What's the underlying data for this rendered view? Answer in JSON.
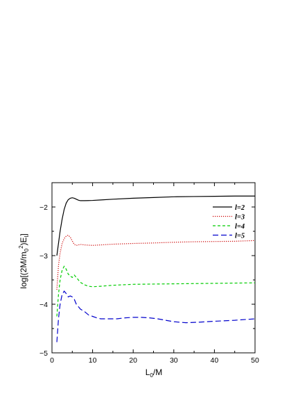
{
  "chart_data": {
    "type": "line",
    "xlabel_main": "L",
    "xlabel_sub": "0",
    "xlabel_rest": "/M",
    "ylabel_parts": {
      "pre": "log[(2M/m",
      "sub0": "0",
      "sup2": "2",
      "mid": ")E",
      "subl": "l",
      "post": "]"
    },
    "xlim": [
      0,
      50
    ],
    "ylim": [
      -5,
      -1.5
    ],
    "xticks": [
      0,
      10,
      20,
      30,
      40,
      50
    ],
    "xtick_labels": [
      "0",
      "10",
      "20",
      "30",
      "40",
      "50"
    ],
    "yticks": [
      -5,
      -4,
      -3,
      -2
    ],
    "ytick_labels": [
      "−5",
      "−4",
      "−3",
      "−2"
    ],
    "legend_placement": "top-right",
    "series": [
      {
        "name": "l=2",
        "color": "#000000",
        "dash": "solid",
        "x": [
          1.2,
          1.6,
          2.0,
          2.5,
          3.0,
          3.5,
          4.0,
          4.5,
          5.0,
          5.5,
          6.0,
          6.5,
          7.0,
          7.5,
          8.0,
          10,
          12,
          15,
          20,
          25,
          30,
          35,
          40,
          45,
          50
        ],
        "y": [
          -3.0,
          -2.75,
          -2.5,
          -2.25,
          -2.05,
          -1.92,
          -1.85,
          -1.82,
          -1.81,
          -1.82,
          -1.84,
          -1.86,
          -1.87,
          -1.87,
          -1.87,
          -1.865,
          -1.855,
          -1.84,
          -1.82,
          -1.805,
          -1.79,
          -1.785,
          -1.78,
          -1.775,
          -1.775
        ]
      },
      {
        "name": "l=3",
        "color": "#cc0000",
        "dash": "dotted",
        "x": [
          1.2,
          1.6,
          2.0,
          2.5,
          3.0,
          3.5,
          4.0,
          4.5,
          5.0,
          5.5,
          6.0,
          6.5,
          7.0,
          8.0,
          10,
          12,
          15,
          20,
          25,
          30,
          35,
          40,
          45,
          50
        ],
        "y": [
          -3.7,
          -3.2,
          -2.95,
          -2.75,
          -2.65,
          -2.6,
          -2.58,
          -2.62,
          -2.7,
          -2.77,
          -2.79,
          -2.78,
          -2.77,
          -2.78,
          -2.79,
          -2.78,
          -2.765,
          -2.75,
          -2.74,
          -2.725,
          -2.715,
          -2.71,
          -2.705,
          -2.69
        ]
      },
      {
        "name": "l=4",
        "color": "#00cc00",
        "dash": "dashed",
        "x": [
          1.2,
          1.6,
          2.0,
          2.5,
          3.0,
          3.5,
          4.0,
          4.5,
          5.0,
          5.5,
          6.0,
          6.5,
          7.0,
          8.0,
          9.0,
          10,
          12,
          15,
          20,
          25,
          30,
          35,
          40,
          45,
          50
        ],
        "y": [
          -4.25,
          -3.8,
          -3.5,
          -3.3,
          -3.22,
          -3.28,
          -3.38,
          -3.42,
          -3.45,
          -3.4,
          -3.45,
          -3.5,
          -3.55,
          -3.6,
          -3.63,
          -3.64,
          -3.63,
          -3.61,
          -3.59,
          -3.585,
          -3.58,
          -3.575,
          -3.57,
          -3.565,
          -3.56
        ]
      },
      {
        "name": "l=5",
        "color": "#0000cc",
        "dash": "longdash",
        "x": [
          1.2,
          1.6,
          2.0,
          2.5,
          3.0,
          3.5,
          4.0,
          4.5,
          5.0,
          5.5,
          6.0,
          6.5,
          7.0,
          8.0,
          9.0,
          10,
          11,
          12,
          14,
          16,
          18,
          20,
          22,
          24,
          26,
          28,
          30,
          33,
          36,
          40,
          45,
          50
        ],
        "y": [
          -4.78,
          -4.3,
          -4.0,
          -3.8,
          -3.73,
          -3.78,
          -3.85,
          -3.83,
          -3.85,
          -3.9,
          -4.0,
          -4.05,
          -4.1,
          -4.15,
          -4.22,
          -4.25,
          -4.28,
          -4.3,
          -4.3,
          -4.3,
          -4.28,
          -4.27,
          -4.27,
          -4.28,
          -4.3,
          -4.33,
          -4.36,
          -4.38,
          -4.37,
          -4.35,
          -4.33,
          -4.3
        ]
      }
    ]
  }
}
